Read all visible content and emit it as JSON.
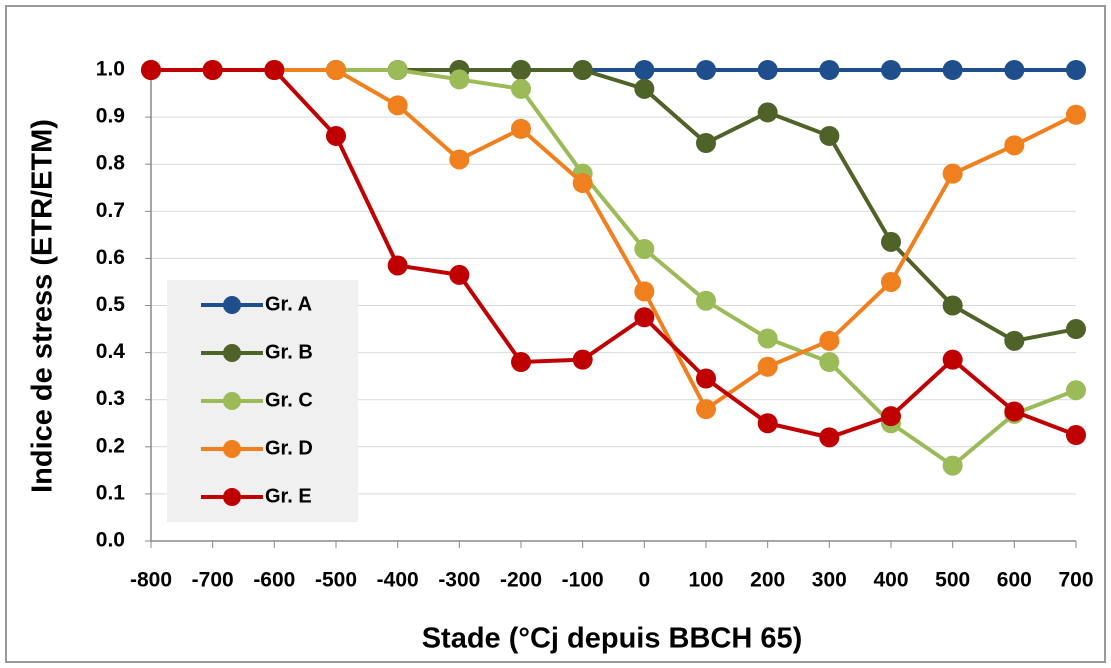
{
  "chart_data": {
    "type": "line",
    "x_label": "Stade (°Cj depuis BBCH 65)",
    "y_label": "Indice de stress (ETR/ETM)",
    "x": [
      -800,
      -700,
      -600,
      -500,
      -400,
      -300,
      -200,
      -100,
      0,
      100,
      200,
      300,
      400,
      500,
      600,
      700
    ],
    "xlim": [
      -800,
      700
    ],
    "xticks": [
      -800,
      -700,
      -600,
      -500,
      -400,
      -300,
      -200,
      -100,
      0,
      100,
      200,
      300,
      400,
      500,
      600,
      700
    ],
    "ylim": [
      0,
      1
    ],
    "yticks": [
      {
        "value": 0,
        "label": "0.0"
      },
      0.1,
      0.2,
      0.3,
      0.4,
      0.5,
      0.6,
      0.7,
      0.8,
      0.9,
      {
        "value": 1,
        "label": "1.0"
      }
    ],
    "grid": true,
    "legend_position": "lower left",
    "series": [
      {
        "name": "Gr. A",
        "color": "#1f4e8c",
        "values": [
          1,
          1,
          1,
          1,
          1,
          1,
          1,
          1,
          1,
          1,
          1,
          1,
          1,
          1,
          1,
          1
        ]
      },
      {
        "name": "Gr. B",
        "color": "#4f6228",
        "values": [
          1,
          1,
          1,
          1,
          1,
          1,
          1,
          1,
          0.96,
          0.845,
          0.91,
          0.86,
          0.635,
          0.5,
          0.425,
          0.45
        ]
      },
      {
        "name": "Gr. C",
        "color": "#9bbb59",
        "values": [
          1,
          1,
          1,
          1,
          1,
          0.98,
          0.96,
          0.78,
          0.62,
          0.51,
          0.43,
          0.38,
          0.25,
          0.16,
          0.27,
          0.32
        ]
      },
      {
        "name": "Gr. D",
        "color": "#f07f1d",
        "values": [
          1,
          1,
          1,
          1,
          0.925,
          0.81,
          0.875,
          0.76,
          0.53,
          0.28,
          0.37,
          0.425,
          0.55,
          0.78,
          0.84,
          0.905
        ]
      },
      {
        "name": "Gr. E",
        "color": "#c00000",
        "values": [
          1,
          1,
          1,
          0.86,
          0.585,
          0.565,
          0.38,
          0.385,
          0.475,
          0.345,
          0.25,
          0.22,
          0.265,
          0.385,
          0.275,
          0.225
        ]
      }
    ]
  }
}
